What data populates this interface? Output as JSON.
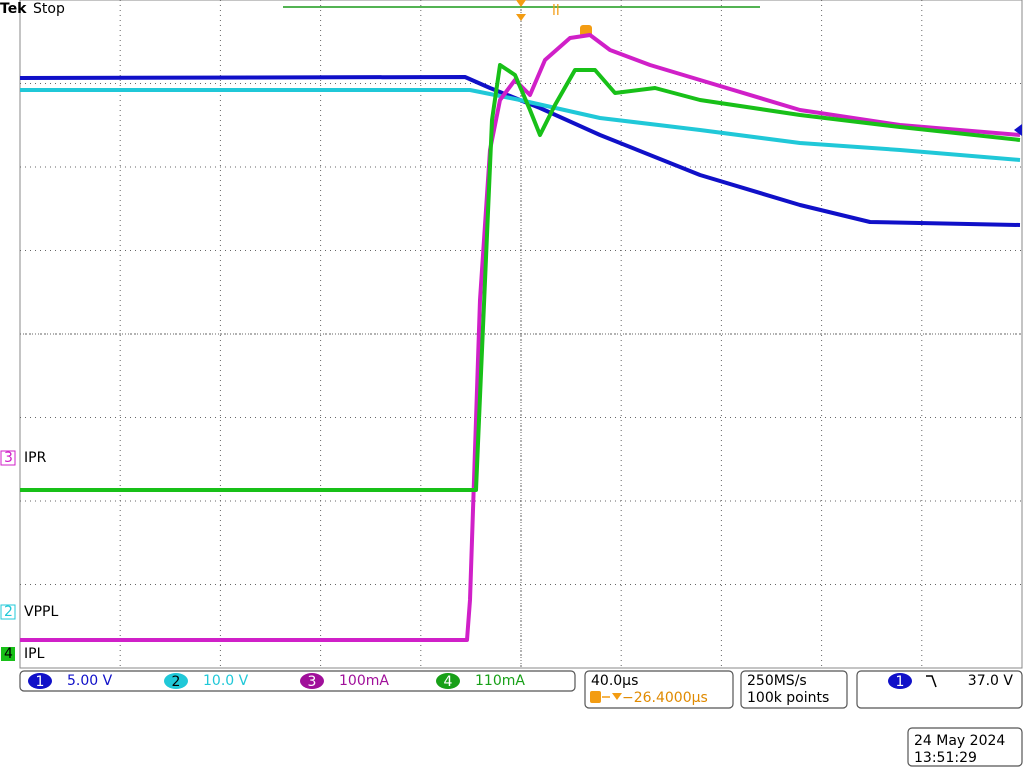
{
  "header": {
    "brand": "Tek",
    "status": "Stop"
  },
  "channel_markers": [
    {
      "number": "3",
      "label": "IPR"
    },
    {
      "number": "2",
      "label": "VPPL"
    },
    {
      "number": "4",
      "label": "IPL"
    }
  ],
  "readouts": {
    "channels": [
      {
        "number": "1",
        "scale": "5.00 V"
      },
      {
        "number": "2",
        "scale": "10.0 V"
      },
      {
        "number": "3",
        "scale": "100mA"
      },
      {
        "number": "4",
        "scale": "110mA"
      }
    ],
    "timebase": "40.0µs",
    "trigger_offset": "−26.4000µs",
    "sample_rate": "250MS/s",
    "record_length": "100k points",
    "trigger": {
      "source": "1",
      "level": "37.0 V"
    }
  },
  "timestamp": {
    "date": "24 May 2024",
    "time": "13:51:29"
  }
}
